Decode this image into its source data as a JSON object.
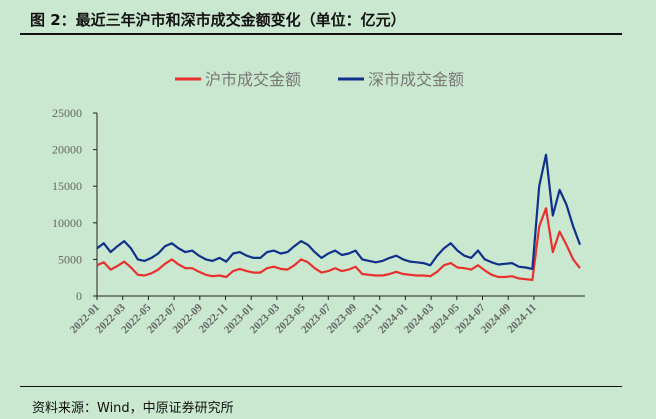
{
  "title": "图 2：最近三年沪市和深市成交金额变化（单位：亿元）",
  "source": "资料来源：Wind，中原证券研究所",
  "chart_data": {
    "type": "line",
    "title": "最近三年沪市和深市成交金额变化（单位：亿元）",
    "xlabel": "",
    "ylabel": "亿元",
    "ylim": [
      0,
      25000
    ],
    "yticks": [
      "0",
      "5000",
      "10000",
      "15000",
      "20000",
      "25000"
    ],
    "xticks": [
      "2022-01",
      "2022-03",
      "2022-05",
      "2022-07",
      "2022-09",
      "2022-11",
      "2023-01",
      "2023-03",
      "2023-05",
      "2023-07",
      "2023-09",
      "2023-11",
      "2024-01",
      "2024-03",
      "2024-05",
      "2024-07",
      "2024-09",
      "2024-11"
    ],
    "x_note": "semi-monthly samples from 2022-01 to 2024-12",
    "legend_position": "top-center",
    "series": [
      {
        "name": "沪市成交金额",
        "color": "#e8312f",
        "values": [
          4200,
          4600,
          3600,
          4100,
          4700,
          3900,
          2900,
          2800,
          3100,
          3600,
          4400,
          5000,
          4300,
          3800,
          3800,
          3300,
          2900,
          2700,
          2800,
          2600,
          3400,
          3700,
          3400,
          3200,
          3200,
          3800,
          4000,
          3700,
          3600,
          4200,
          5000,
          4600,
          3800,
          3200,
          3400,
          3800,
          3400,
          3600,
          4000,
          3000,
          2900,
          2800,
          2800,
          3000,
          3300,
          3000,
          2900,
          2800,
          2800,
          2700,
          3300,
          4200,
          4500,
          3900,
          3800,
          3600,
          4200,
          3500,
          2900,
          2600,
          2600,
          2700,
          2400,
          2300,
          2200,
          9500,
          12000,
          6000,
          8800,
          7000,
          5000,
          3800
        ]
      },
      {
        "name": "深市成交金额",
        "color": "#10308a",
        "values": [
          6500,
          7200,
          6000,
          6800,
          7500,
          6500,
          5000,
          4800,
          5200,
          5800,
          6800,
          7200,
          6500,
          6000,
          6200,
          5500,
          5000,
          4800,
          5200,
          4700,
          5800,
          6000,
          5500,
          5200,
          5200,
          6000,
          6200,
          5800,
          6000,
          6800,
          7500,
          7000,
          6000,
          5200,
          5800,
          6200,
          5600,
          5800,
          6200,
          5000,
          4800,
          4600,
          4800,
          5200,
          5500,
          5000,
          4700,
          4600,
          4500,
          4200,
          5500,
          6500,
          7200,
          6200,
          5500,
          5200,
          6200,
          5000,
          4600,
          4300,
          4400,
          4500,
          4000,
          3900,
          3700,
          15000,
          19300,
          11000,
          14500,
          12500,
          9500,
          7000
        ]
      }
    ]
  }
}
